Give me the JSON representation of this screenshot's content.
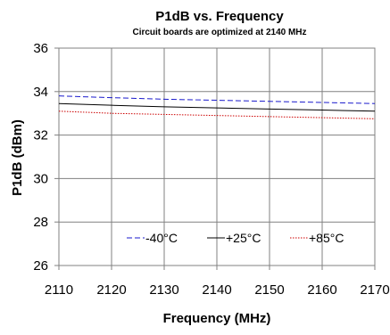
{
  "chart_data": {
    "type": "line",
    "title": "P1dB vs. Frequency",
    "subtitle": "Circuit boards are optimized at 2140 MHz",
    "xlabel": "Frequency (MHz)",
    "ylabel": "P1dB (dBm)",
    "xlim": [
      2110,
      2170
    ],
    "ylim": [
      26,
      36
    ],
    "x_ticks": [
      "2110",
      "2120",
      "2130",
      "2140",
      "2150",
      "2160",
      "2170"
    ],
    "y_ticks": [
      "26",
      "28",
      "30",
      "32",
      "34",
      "36"
    ],
    "grid": true,
    "legend_position": "bottom-center",
    "x": [
      2110,
      2120,
      2130,
      2140,
      2150,
      2160,
      2170
    ],
    "series": [
      {
        "name": "-40°C",
        "values": [
          33.8,
          33.72,
          33.65,
          33.6,
          33.55,
          33.5,
          33.45
        ],
        "color": "#1a1acc",
        "dash": "6,3"
      },
      {
        "name": "+25°C",
        "values": [
          33.45,
          33.37,
          33.3,
          33.25,
          33.2,
          33.15,
          33.1
        ],
        "color": "#000000",
        "dash": ""
      },
      {
        "name": "+85°C",
        "values": [
          33.1,
          33.0,
          32.95,
          32.9,
          32.85,
          32.8,
          32.75
        ],
        "color": "#cc0000",
        "dash": "1.5,1.5"
      }
    ]
  }
}
